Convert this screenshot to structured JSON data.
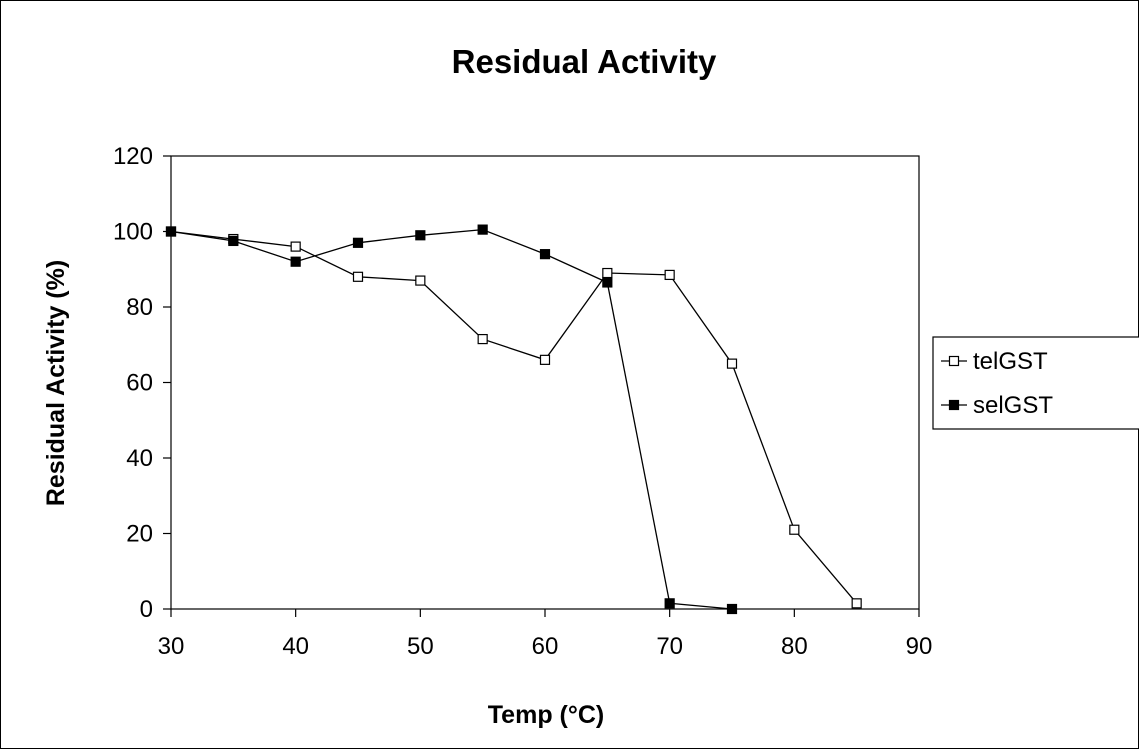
{
  "chart_data": {
    "type": "line",
    "title": "Residual Activity",
    "xlabel": "Temp (°C)",
    "ylabel": "Residual Activity (%)",
    "xlim": [
      30,
      90
    ],
    "ylim": [
      0,
      120
    ],
    "xticks": [
      30,
      40,
      50,
      60,
      70,
      80,
      90
    ],
    "yticks": [
      0,
      20,
      40,
      60,
      80,
      100,
      120
    ],
    "grid": false,
    "legend_position": "right",
    "series": [
      {
        "name": "telGST",
        "marker": "hollow-square",
        "color": "#000000",
        "x": [
          30,
          35,
          40,
          45,
          50,
          55,
          60,
          65,
          70,
          75,
          80,
          85
        ],
        "y": [
          100,
          98,
          96,
          88,
          87,
          71.5,
          66,
          89,
          88.5,
          65,
          21,
          1.5
        ]
      },
      {
        "name": "selGST",
        "marker": "filled-square",
        "color": "#000000",
        "x": [
          30,
          35,
          40,
          45,
          50,
          55,
          60,
          65,
          70,
          75
        ],
        "y": [
          100,
          97.5,
          92,
          97,
          99,
          100.5,
          94,
          86.5,
          1.5,
          0
        ]
      }
    ]
  }
}
